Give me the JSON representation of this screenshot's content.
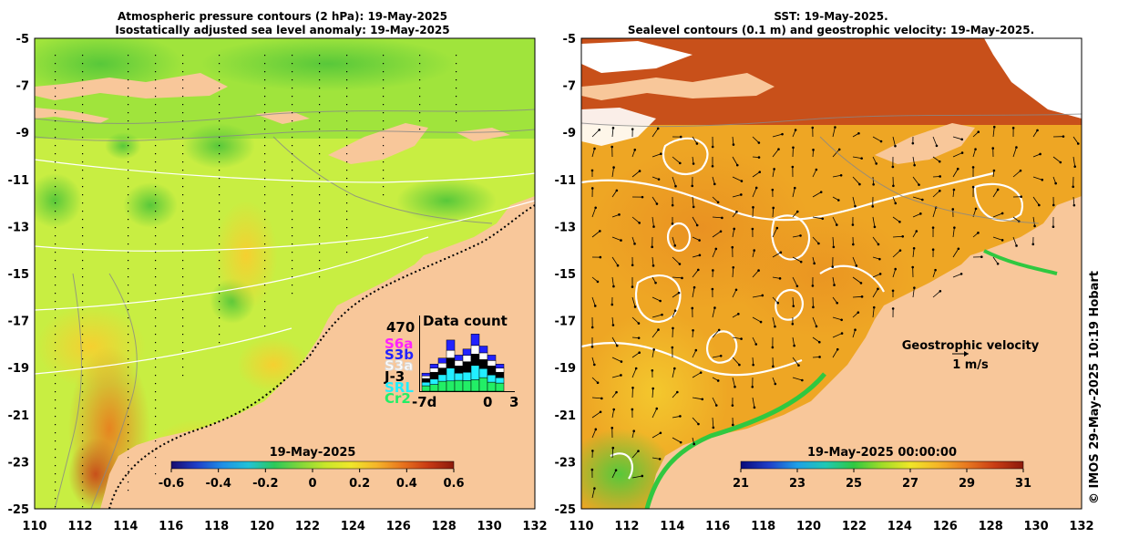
{
  "left_panel": {
    "title_line1": "Atmospheric pressure contours (2 hPa): 19-May-2025",
    "title_line2": "Isostatically adjusted sea level anomaly: 19-May-2025",
    "y_ticks": [
      "-5",
      "-7",
      "-9",
      "-11",
      "-13",
      "-15",
      "-17",
      "-19",
      "-21",
      "-23",
      "-25"
    ],
    "x_ticks": [
      "110",
      "112",
      "114",
      "116",
      "118",
      "120",
      "122",
      "124",
      "126",
      "128",
      "130",
      "132"
    ],
    "colorbar": {
      "date_label": "19-May-2025",
      "ticks": [
        "-0.6",
        "-0.4",
        "-0.2",
        "0",
        "0.2",
        "0.4",
        "0.6"
      ],
      "colors": [
        "#1a0c6e",
        "#1f3fc8",
        "#1f8fe6",
        "#21c2d8",
        "#2bc85a",
        "#7fd63a",
        "#c8e62a",
        "#f0e62a",
        "#f5b42a",
        "#e8741e",
        "#c83a14",
        "#8c1a0c"
      ]
    },
    "data_count": {
      "max_label": "470",
      "title": "Data count",
      "missions": [
        {
          "name": "S6a",
          "color": "#ff22ff"
        },
        {
          "name": "S3b",
          "color": "#2222ff"
        },
        {
          "name": "S3a",
          "color": "#ffffff"
        },
        {
          "name": "J-3",
          "color": "#000000"
        },
        {
          "name": "SRL",
          "color": "#22eeff"
        },
        {
          "name": "Cr2",
          "color": "#22ee66"
        }
      ],
      "axis_labels": {
        "left": "-7d",
        "zero": "0",
        "right": "3"
      },
      "bars": [
        {
          "total": 0.3,
          "parts": [
            0.3,
            0.2,
            0.2,
            0.15,
            0.15
          ]
        },
        {
          "total": 0.45,
          "parts": [
            0.25,
            0.2,
            0.25,
            0.15,
            0.15
          ]
        },
        {
          "total": 0.55,
          "parts": [
            0.3,
            0.2,
            0.2,
            0.15,
            0.15
          ]
        },
        {
          "total": 0.85,
          "parts": [
            0.2,
            0.25,
            0.2,
            0.15,
            0.2
          ]
        },
        {
          "total": 0.6,
          "parts": [
            0.3,
            0.2,
            0.2,
            0.15,
            0.15
          ]
        },
        {
          "total": 0.7,
          "parts": [
            0.25,
            0.2,
            0.25,
            0.15,
            0.15
          ]
        },
        {
          "total": 0.95,
          "parts": [
            0.2,
            0.25,
            0.2,
            0.15,
            0.2
          ]
        },
        {
          "total": 0.75,
          "parts": [
            0.3,
            0.2,
            0.2,
            0.15,
            0.15
          ]
        },
        {
          "total": 0.6,
          "parts": [
            0.25,
            0.2,
            0.25,
            0.15,
            0.15
          ]
        },
        {
          "total": 0.45,
          "parts": [
            0.3,
            0.2,
            0.2,
            0.15,
            0.15
          ]
        }
      ]
    }
  },
  "right_panel": {
    "title_line1": "SST: 19-May-2025.",
    "title_line2": "Sealevel contours (0.1 m) and geostrophic velocity: 19-May-2025.",
    "y_ticks": [
      "-5",
      "-7",
      "-9",
      "-11",
      "-13",
      "-15",
      "-17",
      "-19",
      "-21",
      "-23",
      "-25"
    ],
    "x_ticks": [
      "110",
      "112",
      "114",
      "116",
      "118",
      "120",
      "122",
      "124",
      "126",
      "128",
      "130",
      "132"
    ],
    "colorbar": {
      "date_label": "19-May-2025 00:00:00",
      "ticks": [
        "21",
        "23",
        "25",
        "27",
        "29",
        "31"
      ],
      "colors": [
        "#0a0a7a",
        "#1f3fc8",
        "#1fa0e6",
        "#21c8b4",
        "#30c840",
        "#a0dc28",
        "#f0e628",
        "#f5b428",
        "#e87820",
        "#c83c14",
        "#8c1a0c"
      ]
    },
    "velocity_legend": {
      "label": "Geostrophic velocity",
      "scale": "1 m/s"
    }
  },
  "credit": "© IMOS 29-May-2025 10:19 Hobart",
  "colors": {
    "land": "#f8c79a",
    "sla_base": "#c6f040",
    "sst_base": "#f0a520"
  }
}
